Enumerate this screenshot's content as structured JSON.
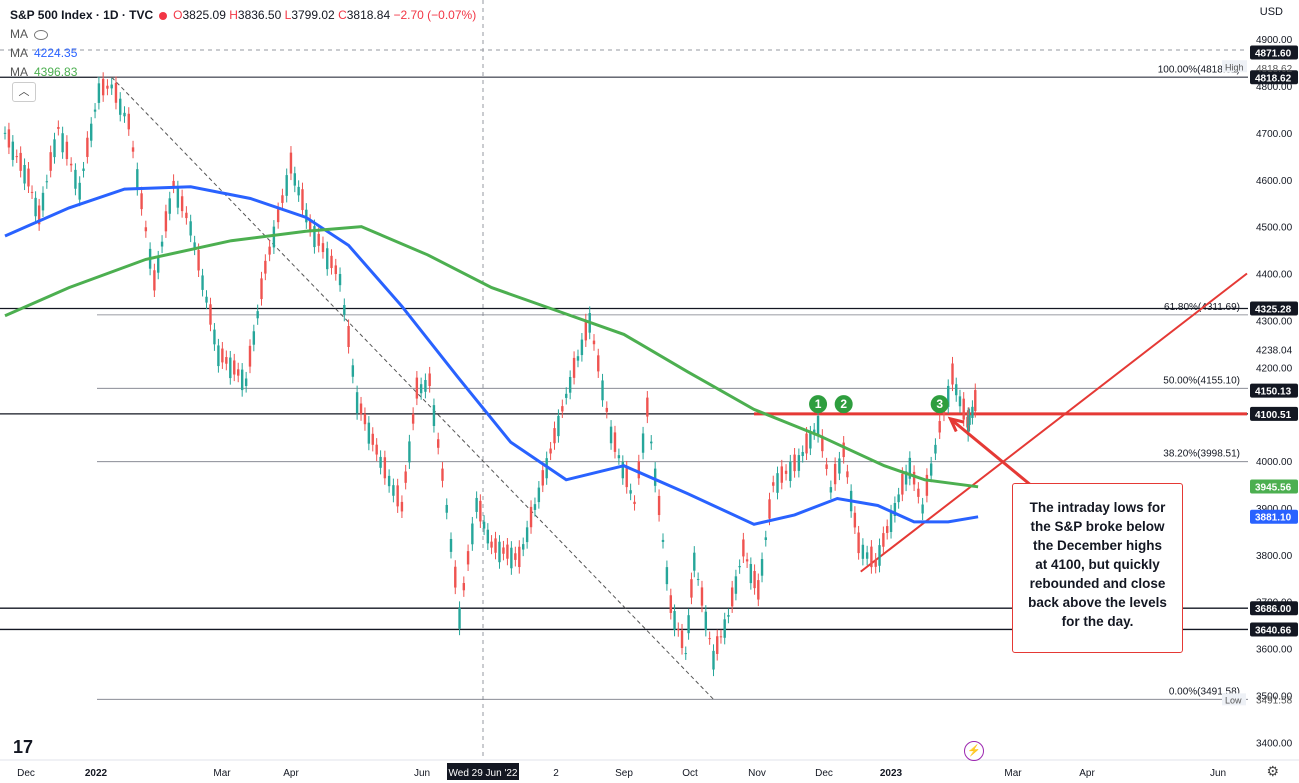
{
  "legend": {
    "title": "S&P 500 Index · 1D · TVC",
    "open": "3825.09",
    "high": "3836.50",
    "low": "3799.02",
    "close": "3818.84",
    "change": "−2.70 (−0.07%)",
    "ma1_label": "MA",
    "ma1_value": "4224.35",
    "ma1_color": "#2962ff",
    "ma2_label": "MA",
    "ma2_value": "4396.83",
    "ma2_color": "#4caf50"
  },
  "currency": "USD",
  "collapse_glyph": "︿",
  "annotation_lines": [
    "The intraday lows for",
    "the S&P broke below",
    "the December highs",
    "at 4100, but quickly",
    "rebounded and close",
    "back above the levels",
    "for the day."
  ],
  "footer": {
    "logo": "17",
    "settings_icon": "gear-icon",
    "bolt_icon": "lightning-icon"
  },
  "chart_data": {
    "type": "line",
    "ylim": [
      3400,
      4950
    ],
    "y_ticks": [
      4900,
      4800,
      4700,
      4600,
      4500,
      4400,
      4300,
      4238.04,
      4200,
      4000,
      3900,
      3800,
      3700,
      3600,
      3500,
      3400
    ],
    "x_ticks": [
      "Dec",
      "2022",
      "Mar",
      "Apr",
      "Jun",
      "Wed 29 Jun '22",
      "2",
      "Sep",
      "Oct",
      "Nov",
      "Dec",
      "2023",
      "Mar",
      "Apr",
      "Jun"
    ],
    "axis_badges": [
      {
        "value": 4871.6,
        "label": "4871.60",
        "color": "#131722"
      },
      {
        "value": 4818.62,
        "label": "4818.62",
        "color": "#131722"
      },
      {
        "value": 4325.28,
        "label": "4325.28",
        "color": "#131722"
      },
      {
        "value": 4150.13,
        "label": "4150.13",
        "color": "#131722"
      },
      {
        "value": 4100.51,
        "label": "4100.51",
        "color": "#131722"
      },
      {
        "value": 3945.56,
        "label": "3945.56",
        "color": "#4caf50"
      },
      {
        "value": 3881.1,
        "label": "3881.10",
        "color": "#2962ff"
      },
      {
        "value": 3686.0,
        "label": "3686.00",
        "color": "#131722"
      },
      {
        "value": 3640.66,
        "label": "3640.66",
        "color": "#131722"
      }
    ],
    "high_tag": {
      "label": "High",
      "value": "4818.62"
    },
    "low_tag": {
      "label": "Low",
      "value": "3491.58"
    },
    "fib_levels": [
      {
        "label": "100.00%(4818.62)",
        "value": 4818.62
      },
      {
        "label": "61.80%(4311.69)",
        "value": 4311.69
      },
      {
        "label": "50.00%(4155.10)",
        "value": 4155.1
      },
      {
        "label": "38.20%(3998.51)",
        "value": 3998.51
      },
      {
        "label": "0.00%(3491.58)",
        "value": 3491.58
      }
    ],
    "horizontal_lines": [
      4818.62,
      4325.28,
      4100.51,
      3686.0,
      3640.66
    ],
    "markers": [
      {
        "label": "1",
        "date": "2022-12-01",
        "value": 4100
      },
      {
        "label": "2",
        "date": "2022-12-13",
        "value": 4100
      },
      {
        "label": "3",
        "date": "2023-01-27",
        "value": 4100
      }
    ],
    "price_points": [
      [
        "2021-11-15",
        4700
      ],
      [
        "2021-11-26",
        4600
      ],
      [
        "2021-12-01",
        4520
      ],
      [
        "2021-12-10",
        4710
      ],
      [
        "2021-12-20",
        4580
      ],
      [
        "2021-12-29",
        4790
      ],
      [
        "2022-01-04",
        4800
      ],
      [
        "2022-01-12",
        4720
      ],
      [
        "2022-01-24",
        4380
      ],
      [
        "2022-02-02",
        4590
      ],
      [
        "2022-02-10",
        4500
      ],
      [
        "2022-02-23",
        4230
      ],
      [
        "2022-03-08",
        4170
      ],
      [
        "2022-03-17",
        4410
      ],
      [
        "2022-03-29",
        4630
      ],
      [
        "2022-04-07",
        4500
      ],
      [
        "2022-04-21",
        4390
      ],
      [
        "2022-04-29",
        4130
      ],
      [
        "2022-05-10",
        4000
      ],
      [
        "2022-05-20",
        3900
      ],
      [
        "2022-05-27",
        4150
      ],
      [
        "2022-06-02",
        4170
      ],
      [
        "2022-06-10",
        3900
      ],
      [
        "2022-06-16",
        3670
      ],
      [
        "2022-06-24",
        3910
      ],
      [
        "2022-07-01",
        3820
      ],
      [
        "2022-07-14",
        3790
      ],
      [
        "2022-07-25",
        3960
      ],
      [
        "2022-08-05",
        4140
      ],
      [
        "2022-08-16",
        4300
      ],
      [
        "2022-08-26",
        4060
      ],
      [
        "2022-09-06",
        3910
      ],
      [
        "2022-09-12",
        4110
      ],
      [
        "2022-09-23",
        3690
      ],
      [
        "2022-09-30",
        3590
      ],
      [
        "2022-10-04",
        3790
      ],
      [
        "2022-10-13",
        3580
      ],
      [
        "2022-10-20",
        3670
      ],
      [
        "2022-10-27",
        3810
      ],
      [
        "2022-11-03",
        3720
      ],
      [
        "2022-11-10",
        3950
      ],
      [
        "2022-11-22",
        4000
      ],
      [
        "2022-12-01",
        4080
      ],
      [
        "2022-12-07",
        3940
      ],
      [
        "2022-12-13",
        4020
      ],
      [
        "2022-12-20",
        3820
      ],
      [
        "2022-12-28",
        3780
      ],
      [
        "2023-01-06",
        3900
      ],
      [
        "2023-01-13",
        3990
      ],
      [
        "2023-01-19",
        3900
      ],
      [
        "2023-01-27",
        4070
      ],
      [
        "2023-02-02",
        4180
      ],
      [
        "2023-02-09",
        4080
      ],
      [
        "2023-02-10",
        4090
      ],
      [
        "2023-02-14",
        4140
      ]
    ],
    "series": [
      {
        "name": "MA",
        "color": "#2962ff",
        "points": [
          [
            "2021-11-15",
            4480
          ],
          [
            "2021-12-15",
            4540
          ],
          [
            "2022-01-10",
            4580
          ],
          [
            "2022-02-10",
            4585
          ],
          [
            "2022-03-10",
            4560
          ],
          [
            "2022-04-05",
            4520
          ],
          [
            "2022-04-25",
            4460
          ],
          [
            "2022-05-20",
            4330
          ],
          [
            "2022-06-15",
            4180
          ],
          [
            "2022-07-10",
            4040
          ],
          [
            "2022-08-05",
            3960
          ],
          [
            "2022-09-01",
            3990
          ],
          [
            "2022-10-01",
            3930
          ],
          [
            "2022-11-01",
            3865
          ],
          [
            "2022-11-20",
            3885
          ],
          [
            "2022-12-10",
            3920
          ],
          [
            "2022-12-29",
            3905
          ],
          [
            "2023-01-15",
            3870
          ],
          [
            "2023-01-31",
            3870
          ],
          [
            "2023-02-14",
            3881
          ]
        ]
      },
      {
        "name": "MA",
        "color": "#4caf50",
        "points": [
          [
            "2021-11-15",
            4310
          ],
          [
            "2021-12-15",
            4370
          ],
          [
            "2022-01-20",
            4430
          ],
          [
            "2022-03-01",
            4470
          ],
          [
            "2022-04-05",
            4490
          ],
          [
            "2022-05-01",
            4500
          ],
          [
            "2022-06-01",
            4440
          ],
          [
            "2022-07-01",
            4370
          ],
          [
            "2022-08-01",
            4320
          ],
          [
            "2022-09-01",
            4270
          ],
          [
            "2022-10-01",
            4190
          ],
          [
            "2022-11-01",
            4110
          ],
          [
            "2022-12-01",
            4055
          ],
          [
            "2023-01-01",
            3990
          ],
          [
            "2023-01-20",
            3960
          ],
          [
            "2023-02-14",
            3945
          ]
        ]
      }
    ],
    "trendlines": [
      {
        "color": "#e53935",
        "from": [
          "2022-11-01",
          4100.51
        ],
        "to": [
          "2023-06-20",
          4100.51
        ],
        "width": 3
      },
      {
        "color": "#e53935",
        "from": [
          "2022-12-21",
          3764
        ],
        "to": [
          "2023-06-20",
          4400
        ],
        "width": 2
      },
      {
        "color": "#555555",
        "from": [
          "2022-01-04",
          4818.62
        ],
        "to": [
          "2022-10-13",
          3491.58
        ],
        "width": 1,
        "dash": true
      }
    ],
    "arrow": {
      "from": [
        "2023-03-13",
        3940
      ],
      "to": [
        "2023-02-01",
        4090
      ],
      "color": "#e53935"
    }
  }
}
